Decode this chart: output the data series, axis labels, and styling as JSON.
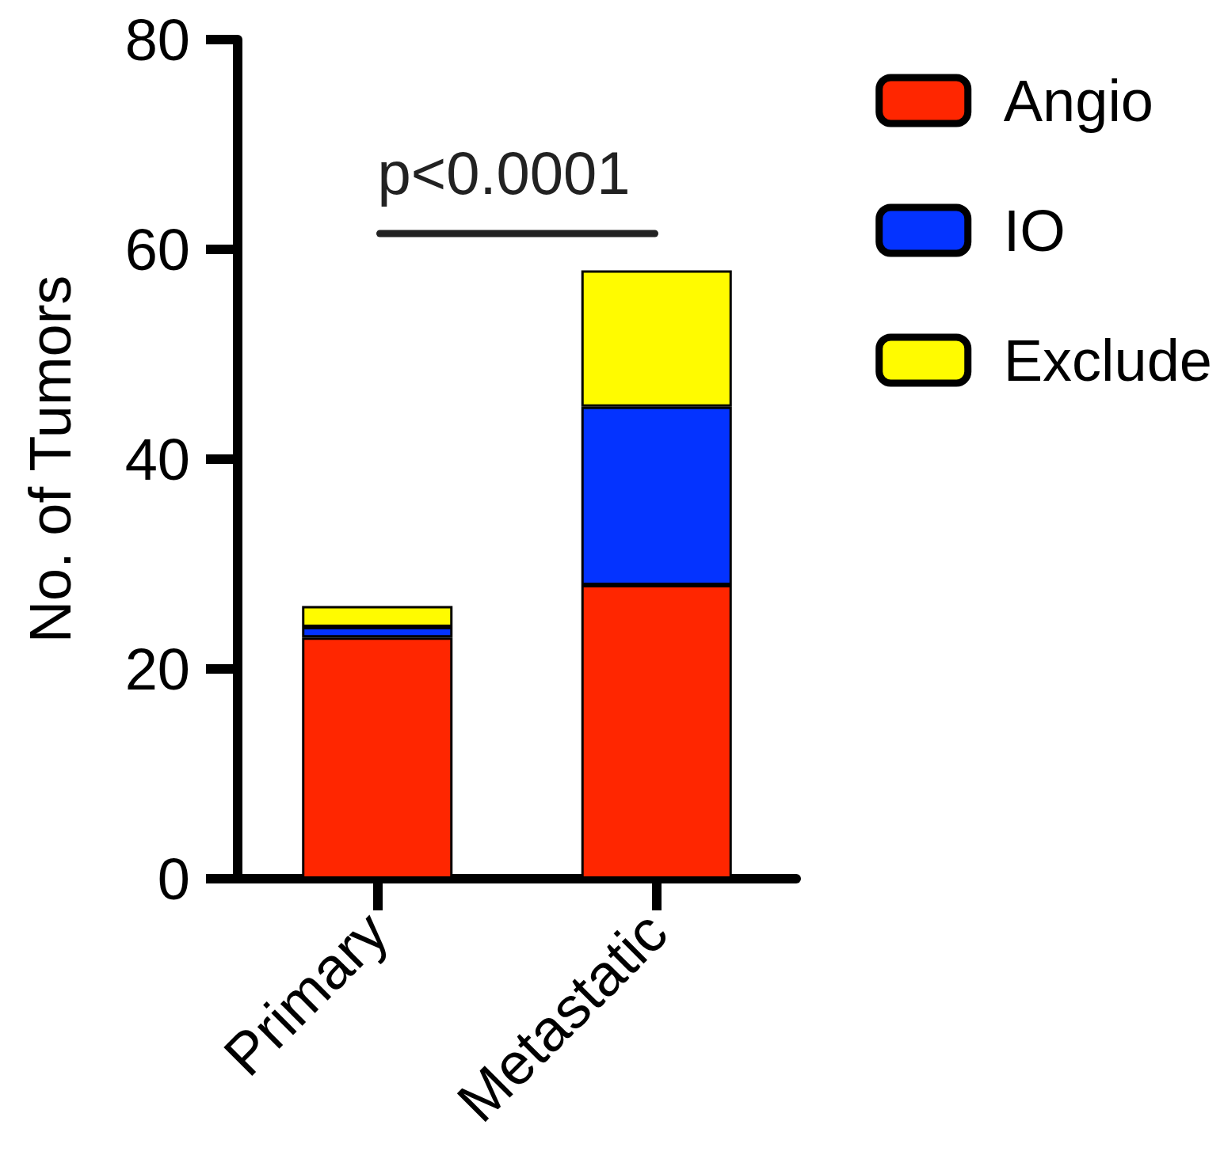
{
  "chart_data": {
    "type": "bar",
    "stacked": true,
    "ylabel": "No. of Tumors",
    "categories": [
      "Primary",
      "Metastatic"
    ],
    "series": [
      {
        "name": "Angio",
        "color": "#ff2600",
        "values": [
          23,
          28
        ]
      },
      {
        "name": "IO",
        "color": "#0433ff",
        "values": [
          1,
          17
        ]
      },
      {
        "name": "Exclude",
        "color": "#fffb00",
        "values": [
          2,
          13
        ]
      }
    ],
    "ylim": [
      0,
      80
    ],
    "yticks": [
      0,
      20,
      40,
      60,
      80
    ],
    "grid": false,
    "legend": "top right",
    "annotations": [
      "p<0.0001"
    ]
  }
}
